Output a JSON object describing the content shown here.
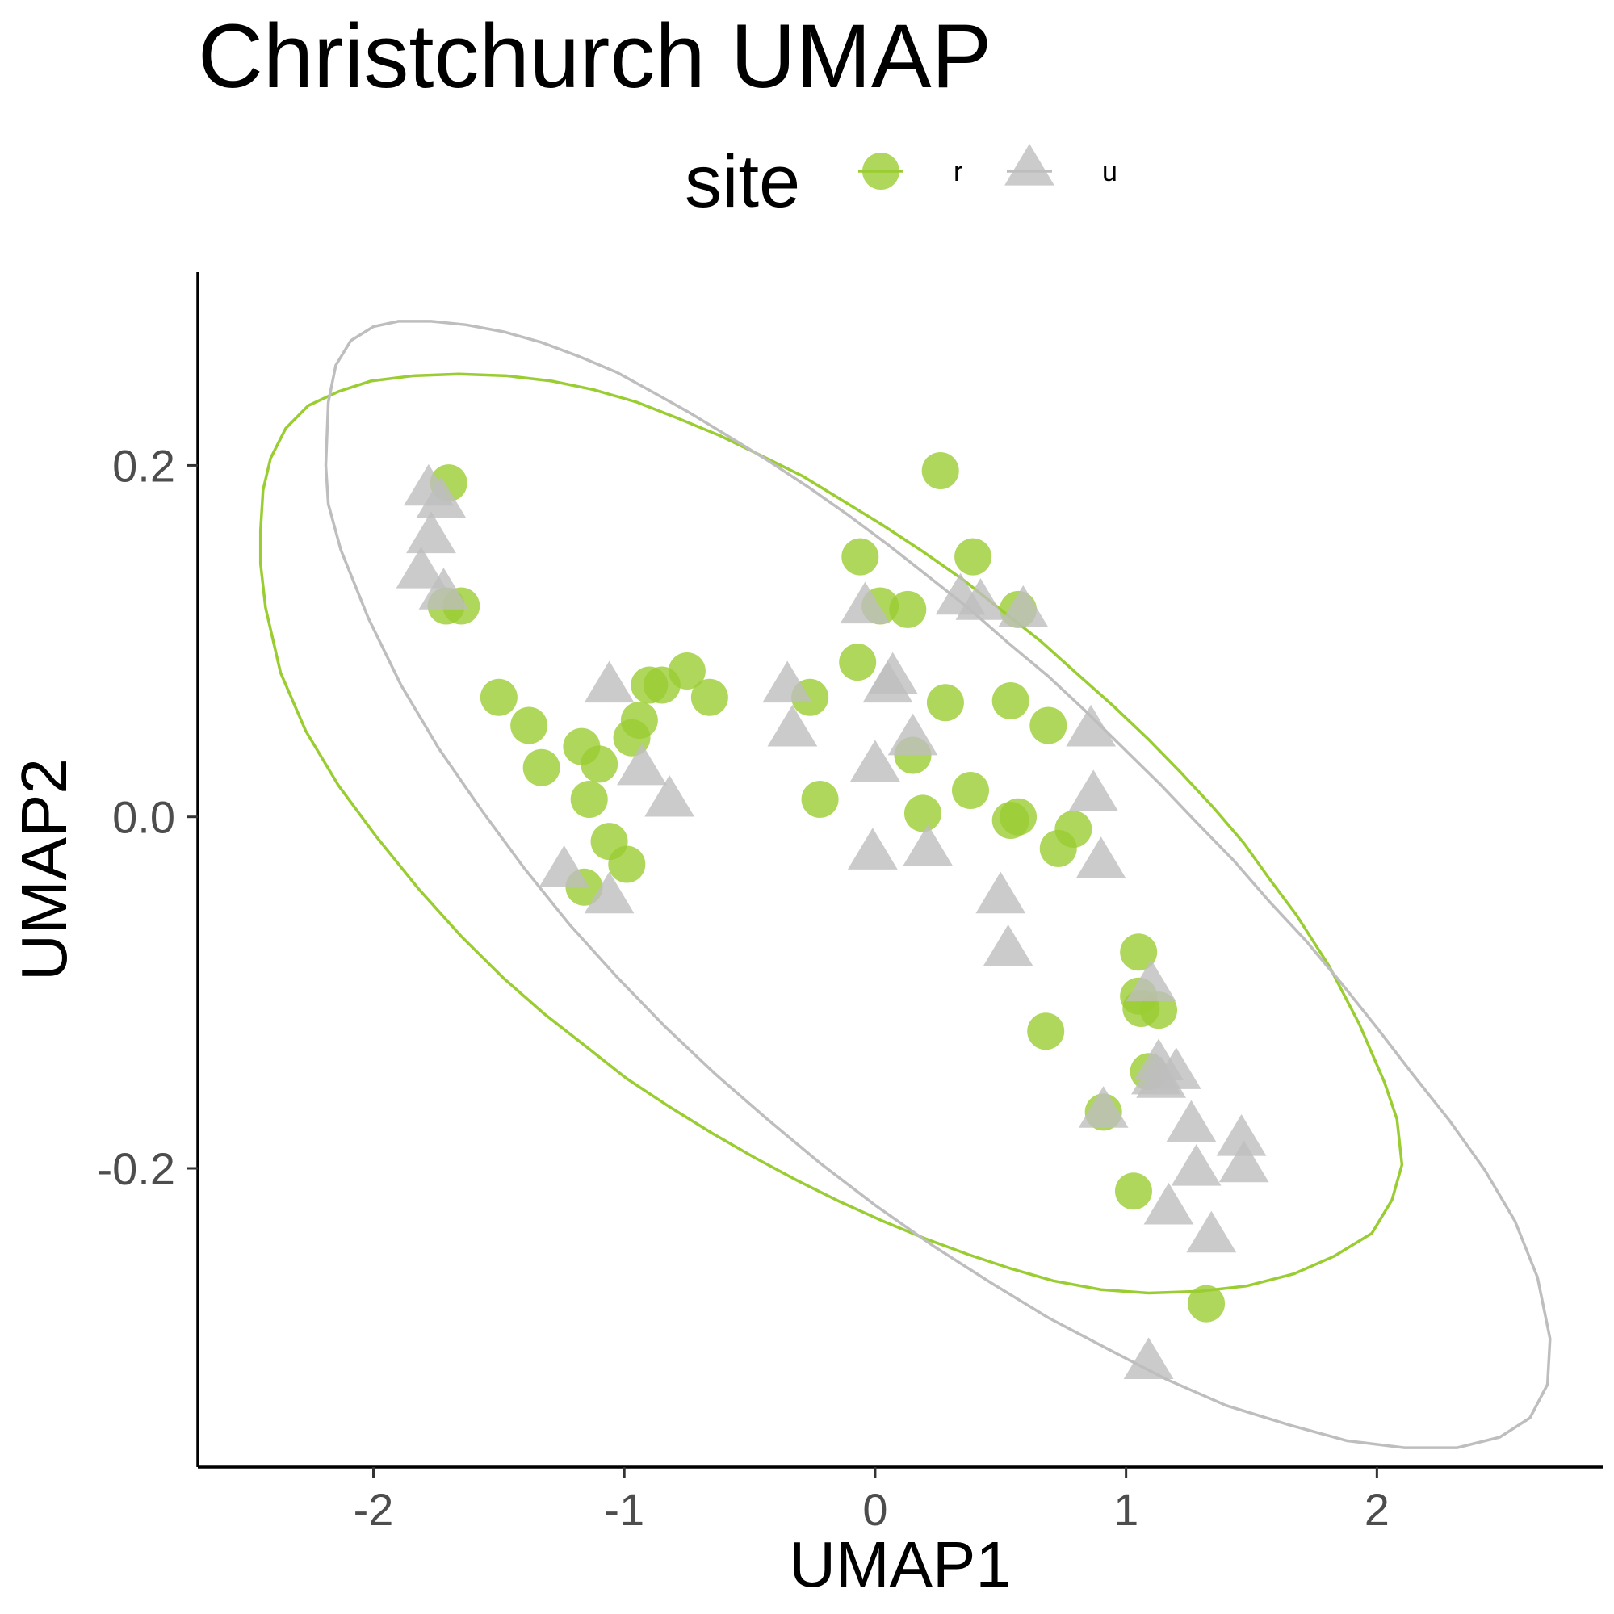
{
  "chart_data": {
    "type": "scatter",
    "title": "Christchurch UMAP",
    "xlabel": "UMAP1",
    "ylabel": "UMAP2",
    "xlim": [
      -2.7,
      2.9
    ],
    "ylim": [
      -0.37,
      0.31
    ],
    "xticks": [
      -2,
      -1,
      0,
      1,
      2
    ],
    "yticks": [
      -0.2,
      0.0,
      0.2
    ],
    "xtick_labels": [
      "-2",
      "-1",
      "0",
      "1",
      "2"
    ],
    "ytick_labels": [
      "-0.2",
      "0.0",
      "0.2"
    ],
    "grid": false,
    "legend": {
      "title": "site",
      "placement": "top"
    },
    "series": [
      {
        "name": "r",
        "marker": "circle",
        "color": "#9ACD32",
        "x": [
          -1.7,
          -1.65,
          -1.71,
          -1.5,
          -1.38,
          -1.33,
          -1.17,
          -1.1,
          -1.14,
          -1.06,
          -0.99,
          -1.16,
          -0.97,
          -0.94,
          -0.9,
          -0.85,
          -0.75,
          -0.66,
          -0.26,
          -0.22,
          -0.06,
          -0.07,
          0.02,
          0.13,
          0.26,
          0.39,
          0.28,
          0.15,
          0.19,
          0.38,
          0.54,
          0.57,
          0.54,
          0.69,
          0.57,
          0.79,
          0.73,
          1.05,
          1.05,
          1.06,
          1.13,
          0.68,
          1.09,
          0.91,
          1.03,
          1.32
        ],
        "y": [
          0.19,
          0.12,
          0.12,
          0.068,
          0.052,
          0.028,
          0.04,
          0.03,
          0.01,
          -0.014,
          -0.027,
          -0.04,
          0.045,
          0.055,
          0.075,
          0.075,
          0.083,
          0.068,
          0.068,
          0.01,
          0.148,
          0.088,
          0.12,
          0.118,
          0.197,
          0.148,
          0.065,
          0.035,
          0.002,
          0.015,
          0.066,
          0.118,
          -0.002,
          0.052,
          0.0,
          -0.007,
          -0.018,
          -0.077,
          -0.102,
          -0.109,
          -0.11,
          -0.122,
          -0.145,
          -0.168,
          -0.213,
          -0.277
        ]
      },
      {
        "name": "u",
        "marker": "triangle",
        "color": "#BEBEBE",
        "x": [
          -1.78,
          -1.73,
          -1.77,
          -1.81,
          -1.72,
          -1.06,
          -0.93,
          -0.82,
          -1.24,
          -1.06,
          -0.35,
          -0.33,
          -0.04,
          0.07,
          0.05,
          0.0,
          0.15,
          -0.01,
          0.21,
          0.34,
          0.42,
          0.59,
          0.86,
          0.87,
          0.9,
          0.5,
          0.53,
          1.1,
          1.13,
          1.2,
          1.12,
          1.14,
          0.91,
          1.26,
          1.46,
          1.28,
          1.47,
          1.17,
          1.34,
          1.09
        ],
        "y": [
          0.187,
          0.18,
          0.16,
          0.14,
          0.128,
          0.075,
          0.028,
          0.01,
          -0.03,
          -0.045,
          0.075,
          0.05,
          0.12,
          0.08,
          0.075,
          0.03,
          0.045,
          -0.02,
          -0.018,
          0.125,
          0.122,
          0.118,
          0.05,
          0.013,
          -0.025,
          -0.045,
          -0.075,
          -0.095,
          -0.14,
          -0.145,
          -0.148,
          -0.15,
          -0.167,
          -0.175,
          -0.183,
          -0.2,
          -0.198,
          -0.222,
          -0.238,
          -0.31
        ]
      }
    ],
    "ellipses": [
      {
        "series": "r",
        "color": "#9ACD32",
        "x": [
          -2.45,
          -2.44,
          -2.41,
          -2.35,
          -2.26,
          -2.14,
          -2.01,
          -1.84,
          -1.66,
          -1.47,
          -1.29,
          -1.12,
          -0.95,
          -0.79,
          -0.62,
          -0.46,
          -0.29,
          -0.13,
          0.03,
          0.19,
          0.35,
          0.5,
          0.66,
          0.8,
          0.95,
          1.09,
          1.22,
          1.35,
          1.47,
          1.57,
          1.68,
          1.81,
          1.93,
          2.03,
          2.08,
          2.1,
          2.06,
          1.98,
          1.83,
          1.67,
          1.48,
          1.29,
          1.09,
          0.9,
          0.71,
          0.54,
          0.37,
          0.2,
          0.03,
          -0.14,
          -0.31,
          -0.48,
          -0.65,
          -0.82,
          -0.99,
          -1.15,
          -1.32,
          -1.48,
          -1.65,
          -1.82,
          -1.99,
          -2.14,
          -2.27,
          -2.37,
          -2.43,
          -2.45
        ],
        "y": [
          0.163,
          0.186,
          0.204,
          0.221,
          0.234,
          0.242,
          0.248,
          0.251,
          0.252,
          0.251,
          0.248,
          0.243,
          0.236,
          0.227,
          0.217,
          0.206,
          0.194,
          0.18,
          0.166,
          0.151,
          0.135,
          0.118,
          0.1,
          0.082,
          0.063,
          0.044,
          0.025,
          0.005,
          -0.015,
          -0.035,
          -0.056,
          -0.085,
          -0.118,
          -0.151,
          -0.172,
          -0.198,
          -0.218,
          -0.237,
          -0.25,
          -0.26,
          -0.267,
          -0.27,
          -0.271,
          -0.269,
          -0.264,
          -0.257,
          -0.249,
          -0.24,
          -0.23,
          -0.219,
          -0.207,
          -0.194,
          -0.18,
          -0.165,
          -0.149,
          -0.131,
          -0.112,
          -0.092,
          -0.068,
          -0.041,
          -0.011,
          0.018,
          0.049,
          0.082,
          0.119,
          0.144
        ],
        "note": "drawn as polygon"
      },
      {
        "series": "u",
        "color": "#BEBEBE",
        "x": [
          -2.19,
          -2.18,
          -2.15,
          -2.09,
          -2.0,
          -1.9,
          -1.77,
          -1.63,
          -1.48,
          -1.33,
          -1.18,
          -1.03,
          -0.89,
          -0.74,
          -0.59,
          -0.43,
          -0.27,
          -0.11,
          0.05,
          0.21,
          0.37,
          0.53,
          0.69,
          0.84,
          0.99,
          1.14,
          1.28,
          1.43,
          1.57,
          1.72,
          1.86,
          2.0,
          2.14,
          2.29,
          2.43,
          2.55,
          2.64,
          2.69,
          2.68,
          2.61,
          2.49,
          2.32,
          2.11,
          1.88,
          1.65,
          1.4,
          1.16,
          0.93,
          0.69,
          0.46,
          0.23,
          -0.0,
          -0.22,
          -0.43,
          -0.64,
          -0.84,
          -1.03,
          -1.22,
          -1.4,
          -1.57,
          -1.74,
          -1.89,
          -2.02,
          -2.13,
          -2.18,
          -2.19
        ],
        "y": [
          0.2,
          0.236,
          0.257,
          0.271,
          0.279,
          0.282,
          0.282,
          0.28,
          0.276,
          0.27,
          0.262,
          0.253,
          0.242,
          0.23,
          0.217,
          0.203,
          0.188,
          0.172,
          0.155,
          0.137,
          0.119,
          0.099,
          0.08,
          0.06,
          0.039,
          0.018,
          -0.003,
          -0.025,
          -0.048,
          -0.071,
          -0.095,
          -0.12,
          -0.146,
          -0.173,
          -0.201,
          -0.23,
          -0.262,
          -0.297,
          -0.323,
          -0.342,
          -0.353,
          -0.359,
          -0.359,
          -0.355,
          -0.346,
          -0.335,
          -0.32,
          -0.303,
          -0.285,
          -0.265,
          -0.244,
          -0.221,
          -0.197,
          -0.172,
          -0.146,
          -0.119,
          -0.091,
          -0.061,
          -0.029,
          0.004,
          0.039,
          0.075,
          0.113,
          0.152,
          0.178,
          0.2
        ]
      }
    ]
  }
}
